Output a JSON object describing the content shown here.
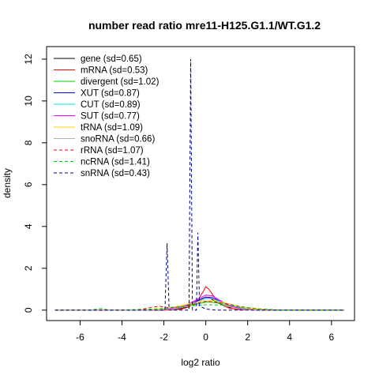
{
  "chart_data": {
    "type": "line",
    "title": "number read ratio mre11-H125.G1.1/WT.G1.2",
    "xlabel": "log2 ratio",
    "ylabel": "density",
    "xlim": [
      -7.6,
      7.1
    ],
    "ylim": [
      -0.5,
      12.6
    ],
    "xticks": [
      -6,
      -4,
      -2,
      0,
      2,
      4,
      6
    ],
    "yticks": [
      0,
      2,
      4,
      6,
      8,
      10,
      12
    ],
    "legend_position": "top-left",
    "series": [
      {
        "name": "gene (sd=0.65)",
        "color": "#000000",
        "dash": "solid",
        "points": [
          [
            -7.2,
            0
          ],
          [
            -2.0,
            0
          ],
          [
            -1.5,
            0.03
          ],
          [
            -1.0,
            0.12
          ],
          [
            -0.5,
            0.35
          ],
          [
            -0.2,
            0.55
          ],
          [
            0,
            0.62
          ],
          [
            0.2,
            0.58
          ],
          [
            0.5,
            0.38
          ],
          [
            1.0,
            0.15
          ],
          [
            1.5,
            0.05
          ],
          [
            2.0,
            0.01
          ],
          [
            3.0,
            0
          ],
          [
            6.6,
            0
          ]
        ]
      },
      {
        "name": "mRNA (sd=0.53)",
        "color": "#ff0000",
        "dash": "solid",
        "points": [
          [
            -7.2,
            0
          ],
          [
            -2.0,
            0
          ],
          [
            -1.2,
            0.04
          ],
          [
            -0.8,
            0.15
          ],
          [
            -0.4,
            0.45
          ],
          [
            -0.15,
            0.85
          ],
          [
            0,
            1.12
          ],
          [
            0.15,
            1.0
          ],
          [
            0.35,
            0.7
          ],
          [
            0.7,
            0.3
          ],
          [
            1.1,
            0.1
          ],
          [
            1.6,
            0.02
          ],
          [
            2.5,
            0
          ],
          [
            6.6,
            0
          ]
        ]
      },
      {
        "name": "divergent (sd=1.02)",
        "color": "#00cd00",
        "dash": "solid",
        "points": [
          [
            -7.2,
            0
          ],
          [
            -3.0,
            0
          ],
          [
            -2.0,
            0.04
          ],
          [
            -1.0,
            0.15
          ],
          [
            -0.3,
            0.32
          ],
          [
            0.1,
            0.4
          ],
          [
            0.5,
            0.35
          ],
          [
            1.0,
            0.25
          ],
          [
            1.5,
            0.14
          ],
          [
            2.0,
            0.07
          ],
          [
            2.8,
            0.02
          ],
          [
            4.0,
            0
          ],
          [
            6.6,
            0
          ]
        ]
      },
      {
        "name": "XUT (sd=0.87)",
        "color": "#0000ff",
        "dash": "solid",
        "points": [
          [
            -7.2,
            0
          ],
          [
            -3.0,
            0
          ],
          [
            -2.0,
            0.03
          ],
          [
            -1.0,
            0.18
          ],
          [
            -0.4,
            0.45
          ],
          [
            0,
            0.62
          ],
          [
            0.3,
            0.6
          ],
          [
            0.7,
            0.42
          ],
          [
            1.2,
            0.2
          ],
          [
            1.8,
            0.06
          ],
          [
            2.5,
            0.01
          ],
          [
            3.5,
            0
          ],
          [
            6.6,
            0
          ]
        ]
      },
      {
        "name": "CUT (sd=0.89)",
        "color": "#00e5ee",
        "dash": "solid",
        "points": [
          [
            -7.2,
            0
          ],
          [
            -3.0,
            0
          ],
          [
            -2.0,
            0.03
          ],
          [
            -1.0,
            0.16
          ],
          [
            -0.4,
            0.4
          ],
          [
            0,
            0.55
          ],
          [
            0.3,
            0.56
          ],
          [
            0.7,
            0.4
          ],
          [
            1.2,
            0.2
          ],
          [
            1.8,
            0.07
          ],
          [
            2.5,
            0.01
          ],
          [
            3.5,
            0
          ],
          [
            6.6,
            0
          ]
        ]
      },
      {
        "name": "SUT (sd=0.77)",
        "color": "#ff00ff",
        "dash": "solid",
        "points": [
          [
            -7.2,
            0
          ],
          [
            -3.0,
            0
          ],
          [
            -2.0,
            0.02
          ],
          [
            -1.0,
            0.2
          ],
          [
            -0.4,
            0.52
          ],
          [
            0,
            0.72
          ],
          [
            0.3,
            0.68
          ],
          [
            0.7,
            0.45
          ],
          [
            1.2,
            0.18
          ],
          [
            1.8,
            0.05
          ],
          [
            2.5,
            0.01
          ],
          [
            3.5,
            0
          ],
          [
            6.6,
            0
          ]
        ]
      },
      {
        "name": "tRNA (sd=1.09)",
        "color": "#ffd700",
        "dash": "solid",
        "points": [
          [
            -7.2,
            0
          ],
          [
            -3.0,
            0
          ],
          [
            -2.2,
            0.05
          ],
          [
            -1.5,
            0.15
          ],
          [
            -0.8,
            0.3
          ],
          [
            -0.2,
            0.42
          ],
          [
            0.3,
            0.45
          ],
          [
            0.8,
            0.38
          ],
          [
            1.3,
            0.25
          ],
          [
            1.8,
            0.12
          ],
          [
            2.4,
            0.04
          ],
          [
            3.2,
            0
          ],
          [
            6.6,
            0
          ]
        ]
      },
      {
        "name": "snoRNA (sd=0.66)",
        "color": "#b0b0b0",
        "dash": "solid",
        "points": [
          [
            -7.2,
            0
          ],
          [
            -2.5,
            0
          ],
          [
            -1.5,
            0.05
          ],
          [
            -0.8,
            0.2
          ],
          [
            -0.3,
            0.45
          ],
          [
            0,
            0.58
          ],
          [
            0.3,
            0.55
          ],
          [
            0.8,
            0.3
          ],
          [
            1.3,
            0.1
          ],
          [
            2.0,
            0.02
          ],
          [
            3.0,
            0
          ],
          [
            6.6,
            0
          ]
        ]
      },
      {
        "name": "rRNA (sd=1.07)",
        "color": "#ff0000",
        "dash": "dashed",
        "points": [
          [
            -7.2,
            0
          ],
          [
            -3.5,
            0
          ],
          [
            -3.0,
            0.05
          ],
          [
            -2.5,
            0.15
          ],
          [
            -2.2,
            0.18
          ],
          [
            -1.8,
            0.12
          ],
          [
            -1.2,
            0.16
          ],
          [
            -0.6,
            0.28
          ],
          [
            0,
            0.42
          ],
          [
            0.5,
            0.38
          ],
          [
            1.0,
            0.3
          ],
          [
            1.5,
            0.2
          ],
          [
            2.0,
            0.12
          ],
          [
            2.6,
            0.05
          ],
          [
            3.3,
            0
          ],
          [
            6.6,
            0
          ]
        ]
      },
      {
        "name": "ncRNA (sd=1.41)",
        "color": "#00cd00",
        "dash": "dashed",
        "points": [
          [
            -7.2,
            0
          ],
          [
            -5.5,
            0
          ],
          [
            -5.0,
            0.08
          ],
          [
            -4.6,
            0
          ],
          [
            -3.0,
            0.03
          ],
          [
            -2.0,
            0.08
          ],
          [
            -1.0,
            0.18
          ],
          [
            0,
            0.26
          ],
          [
            1.0,
            0.24
          ],
          [
            1.8,
            0.14
          ],
          [
            2.6,
            0.06
          ],
          [
            3.5,
            0.01
          ],
          [
            4.5,
            0
          ],
          [
            6.6,
            0
          ]
        ]
      },
      {
        "name": "snRNA (sd=0.43)",
        "color": "#00008b",
        "dash": "dashed",
        "points": [
          [
            -7.2,
            0
          ],
          [
            -1.95,
            0
          ],
          [
            -1.85,
            3.2
          ],
          [
            -1.75,
            0
          ],
          [
            -0.8,
            0
          ],
          [
            -0.72,
            12.0
          ],
          [
            -0.64,
            0
          ],
          [
            -0.45,
            0
          ],
          [
            -0.38,
            3.7
          ],
          [
            -0.3,
            0.2
          ],
          [
            0,
            0.05
          ],
          [
            0.5,
            0
          ],
          [
            6.6,
            0
          ]
        ]
      }
    ]
  }
}
